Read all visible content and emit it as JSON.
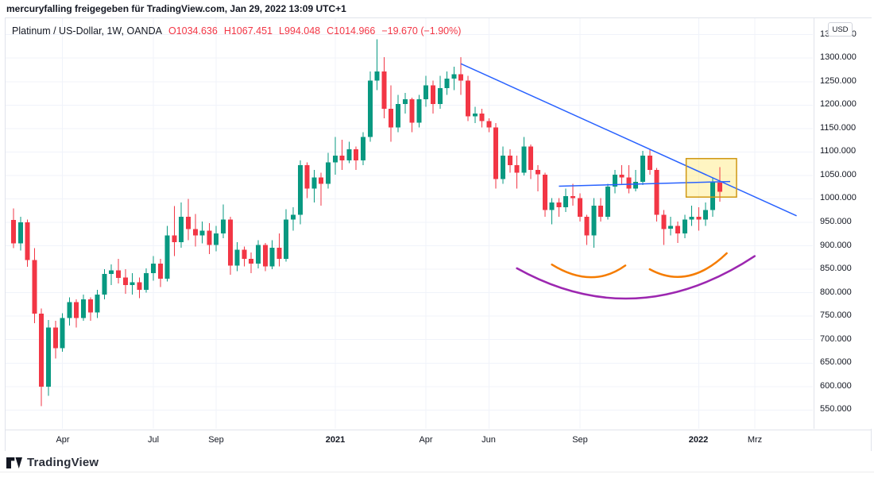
{
  "attribution": "mercuryfalling freigegeben für TradingView.com, Jan 29, 2022 13:09 UTC+1",
  "legend": {
    "symbol": "Platinum / US-Dollar, 1W, OANDA",
    "ohlc": [
      {
        "label": "O",
        "value": "1034.636"
      },
      {
        "label": "H",
        "value": "1067.451"
      },
      {
        "label": "L",
        "value": "994.048"
      },
      {
        "label": "C",
        "value": "1014.966"
      }
    ],
    "change": "−19.670 (−1.90%)",
    "change_color": "#f23645"
  },
  "price_scale": {
    "unit": "USD",
    "labels": [
      "1350.000",
      "1300.000",
      "1250.000",
      "1200.000",
      "1150.000",
      "1100.000",
      "1050.000",
      "1000.000",
      "950.000",
      "900.000",
      "850.000",
      "800.000",
      "750.000",
      "700.000",
      "650.000",
      "600.000",
      "550.000"
    ]
  },
  "time_axis": {
    "labels": [
      {
        "text": "Apr",
        "index": 7,
        "bold": false
      },
      {
        "text": "Jul",
        "index": 20,
        "bold": false
      },
      {
        "text": "Sep",
        "index": 29,
        "bold": false
      },
      {
        "text": "2021",
        "index": 46,
        "bold": true
      },
      {
        "text": "Apr",
        "index": 59,
        "bold": false
      },
      {
        "text": "Jun",
        "index": 68,
        "bold": false
      },
      {
        "text": "Sep",
        "index": 81,
        "bold": false
      },
      {
        "text": "2022",
        "index": 98,
        "bold": true
      },
      {
        "text": "Mrz",
        "index": 106,
        "bold": false
      }
    ]
  },
  "chart_data": {
    "type": "candlestick",
    "title": "Platinum / US-Dollar",
    "timeframe": "1W",
    "exchange": "OANDA",
    "currency": "USD",
    "price_range": [
      510,
      1385
    ],
    "grid": {
      "start": 550,
      "end": 1350,
      "step": 50
    },
    "grid_color": "#f0f3fa",
    "up_color": "#089981",
    "down_color": "#f23645",
    "candles": [
      [
        "2020-02-17",
        955,
        980,
        895,
        905
      ],
      [
        "2020-02-24",
        905,
        962,
        890,
        950
      ],
      [
        "2020-03-02",
        950,
        956,
        855,
        870
      ],
      [
        "2020-03-09",
        870,
        895,
        735,
        755
      ],
      [
        "2020-03-16",
        755,
        766,
        558,
        600
      ],
      [
        "2020-03-23",
        600,
        742,
        580,
        726
      ],
      [
        "2020-03-30",
        726,
        740,
        660,
        682
      ],
      [
        "2020-04-06",
        682,
        756,
        674,
        746
      ],
      [
        "2020-04-13",
        746,
        790,
        730,
        780
      ],
      [
        "2020-04-20",
        780,
        786,
        726,
        746
      ],
      [
        "2020-04-27",
        746,
        796,
        740,
        786
      ],
      [
        "2020-05-04",
        786,
        790,
        740,
        758
      ],
      [
        "2020-05-11",
        758,
        806,
        746,
        796
      ],
      [
        "2020-05-18",
        796,
        850,
        786,
        840
      ],
      [
        "2020-05-25",
        840,
        860,
        816,
        848
      ],
      [
        "2020-06-01",
        848,
        872,
        820,
        832
      ],
      [
        "2020-06-08",
        832,
        850,
        798,
        816
      ],
      [
        "2020-06-15",
        816,
        842,
        796,
        822
      ],
      [
        "2020-06-22",
        822,
        832,
        788,
        806
      ],
      [
        "2020-06-29",
        806,
        852,
        800,
        842
      ],
      [
        "2020-07-06",
        842,
        878,
        826,
        862
      ],
      [
        "2020-07-13",
        862,
        872,
        812,
        830
      ],
      [
        "2020-07-20",
        830,
        942,
        824,
        922
      ],
      [
        "2020-07-27",
        922,
        985,
        878,
        908
      ],
      [
        "2020-08-03",
        908,
        992,
        896,
        962
      ],
      [
        "2020-08-10",
        962,
        1000,
        912,
        936
      ],
      [
        "2020-08-17",
        936,
        968,
        898,
        922
      ],
      [
        "2020-08-24",
        922,
        952,
        905,
        932
      ],
      [
        "2020-08-31",
        932,
        948,
        882,
        902
      ],
      [
        "2020-09-07",
        902,
        942,
        888,
        926
      ],
      [
        "2020-09-14",
        926,
        988,
        916,
        956
      ],
      [
        "2020-09-21",
        956,
        962,
        838,
        858
      ],
      [
        "2020-09-28",
        858,
        908,
        846,
        892
      ],
      [
        "2020-10-05",
        892,
        898,
        856,
        872
      ],
      [
        "2020-10-12",
        872,
        886,
        842,
        862
      ],
      [
        "2020-10-19",
        862,
        912,
        852,
        902
      ],
      [
        "2020-10-26",
        902,
        906,
        846,
        856
      ],
      [
        "2020-11-02",
        856,
        912,
        850,
        896
      ],
      [
        "2020-11-09",
        896,
        926,
        856,
        872
      ],
      [
        "2020-11-16",
        872,
        978,
        866,
        956
      ],
      [
        "2020-11-23",
        956,
        982,
        932,
        966
      ],
      [
        "2020-11-30",
        966,
        1082,
        946,
        1072
      ],
      [
        "2020-12-07",
        1072,
        1078,
        1002,
        1022
      ],
      [
        "2020-12-14",
        1022,
        1062,
        992,
        1046
      ],
      [
        "2020-12-21",
        1046,
        1056,
        986,
        1032
      ],
      [
        "2020-12-28",
        1032,
        1098,
        1022,
        1078
      ],
      [
        "2021-01-04",
        1078,
        1132,
        1052,
        1092
      ],
      [
        "2021-01-11",
        1092,
        1126,
        1062,
        1082
      ],
      [
        "2021-01-18",
        1082,
        1122,
        1076,
        1106
      ],
      [
        "2021-01-25",
        1106,
        1112,
        1062,
        1082
      ],
      [
        "2021-02-01",
        1082,
        1142,
        1072,
        1132
      ],
      [
        "2021-02-08",
        1132,
        1272,
        1122,
        1252
      ],
      [
        "2021-02-15",
        1252,
        1340,
        1232,
        1272
      ],
      [
        "2021-02-22",
        1272,
        1302,
        1172,
        1192
      ],
      [
        "2021-03-01",
        1192,
        1242,
        1122,
        1152
      ],
      [
        "2021-03-08",
        1152,
        1222,
        1142,
        1202
      ],
      [
        "2021-03-15",
        1202,
        1226,
        1182,
        1212
      ],
      [
        "2021-03-22",
        1212,
        1216,
        1142,
        1162
      ],
      [
        "2021-03-29",
        1162,
        1222,
        1152,
        1212
      ],
      [
        "2021-04-05",
        1212,
        1262,
        1196,
        1242
      ],
      [
        "2021-04-12",
        1242,
        1252,
        1182,
        1202
      ],
      [
        "2021-04-19",
        1202,
        1262,
        1192,
        1236
      ],
      [
        "2021-04-26",
        1236,
        1272,
        1222,
        1256
      ],
      [
        "2021-05-03",
        1256,
        1282,
        1232,
        1266
      ],
      [
        "2021-05-10",
        1266,
        1302,
        1222,
        1252
      ],
      [
        "2021-05-17",
        1252,
        1262,
        1166,
        1176
      ],
      [
        "2021-05-24",
        1176,
        1196,
        1162,
        1182
      ],
      [
        "2021-05-31",
        1182,
        1192,
        1152,
        1166
      ],
      [
        "2021-06-07",
        1166,
        1172,
        1142,
        1152
      ],
      [
        "2021-06-14",
        1152,
        1162,
        1022,
        1042
      ],
      [
        "2021-06-21",
        1042,
        1112,
        1032,
        1092
      ],
      [
        "2021-06-28",
        1092,
        1106,
        1056,
        1072
      ],
      [
        "2021-07-05",
        1072,
        1092,
        1022,
        1056
      ],
      [
        "2021-07-12",
        1056,
        1132,
        1050,
        1112
      ],
      [
        "2021-07-19",
        1112,
        1116,
        1042,
        1062
      ],
      [
        "2021-07-26",
        1062,
        1072,
        1016,
        1052
      ],
      [
        "2021-08-02",
        1052,
        1056,
        962,
        976
      ],
      [
        "2021-08-09",
        976,
        1002,
        946,
        992
      ],
      [
        "2021-08-16",
        992,
        1002,
        962,
        982
      ],
      [
        "2021-08-23",
        982,
        1022,
        972,
        1006
      ],
      [
        "2021-08-30",
        1006,
        1032,
        986,
        1002
      ],
      [
        "2021-09-06",
        1002,
        1012,
        952,
        962
      ],
      [
        "2021-09-13",
        962,
        966,
        902,
        922
      ],
      [
        "2021-09-20",
        922,
        1002,
        896,
        986
      ],
      [
        "2021-09-27",
        986,
        1002,
        952,
        962
      ],
      [
        "2021-10-04",
        962,
        1032,
        956,
        1026
      ],
      [
        "2021-10-11",
        1026,
        1062,
        1012,
        1052
      ],
      [
        "2021-10-18",
        1052,
        1072,
        1032,
        1046
      ],
      [
        "2021-10-25",
        1046,
        1072,
        1012,
        1022
      ],
      [
        "2021-11-01",
        1022,
        1062,
        1016,
        1036
      ],
      [
        "2021-11-08",
        1036,
        1102,
        1030,
        1092
      ],
      [
        "2021-11-15",
        1092,
        1106,
        1052,
        1062
      ],
      [
        "2021-11-22",
        1062,
        1066,
        952,
        966
      ],
      [
        "2021-11-29",
        966,
        976,
        902,
        936
      ],
      [
        "2021-12-06",
        936,
        962,
        922,
        942
      ],
      [
        "2021-12-13",
        942,
        952,
        906,
        926
      ],
      [
        "2021-12-20",
        926,
        966,
        916,
        956
      ],
      [
        "2021-12-27",
        956,
        986,
        942,
        962
      ],
      [
        "2022-01-03",
        962,
        982,
        932,
        956
      ],
      [
        "2022-01-10",
        956,
        992,
        942,
        976
      ],
      [
        "2022-01-17",
        976,
        1046,
        962,
        1036
      ],
      [
        "2022-01-24",
        1034.636,
        1067.451,
        994.048,
        1014.966
      ]
    ]
  },
  "drawings": {
    "trendline": {
      "type": "trend-line",
      "color": "#2962ff",
      "width": 1.5,
      "from": {
        "index": 64,
        "price": 1288
      },
      "to": {
        "index": 112,
        "price": 964
      }
    },
    "horizontal_line": {
      "type": "trend-line",
      "color": "#2962ff",
      "width": 1.5,
      "from": {
        "index": 78,
        "price": 1027
      },
      "to": {
        "index": 102.5,
        "price": 1037
      }
    },
    "highlight_box": {
      "type": "rectangle",
      "from_index": 96.2,
      "to_index": 103.4,
      "top_price": 1086,
      "bottom_price": 1004,
      "fill": "rgba(255,225,80,0.35)",
      "stroke": "#cf9712"
    },
    "arcs": [
      {
        "name": "purple-arc",
        "color": "#9c27b0",
        "width": 2.5,
        "from": {
          "index": 72,
          "price": 852
        },
        "mid": {
          "index": 89,
          "price": 788
        },
        "to": {
          "index": 106,
          "price": 878
        }
      },
      {
        "name": "orange-arc-left",
        "color": "#f57c00",
        "width": 2.5,
        "from": {
          "index": 77,
          "price": 860
        },
        "mid": {
          "index": 82.5,
          "price": 833
        },
        "to": {
          "index": 87.5,
          "price": 858
        }
      },
      {
        "name": "orange-arc-right",
        "color": "#f57c00",
        "width": 2.5,
        "from": {
          "index": 91,
          "price": 850
        },
        "mid": {
          "index": 96.5,
          "price": 836
        },
        "to": {
          "index": 102,
          "price": 884
        }
      }
    ]
  },
  "footer": {
    "logo_text": "TradingView"
  }
}
